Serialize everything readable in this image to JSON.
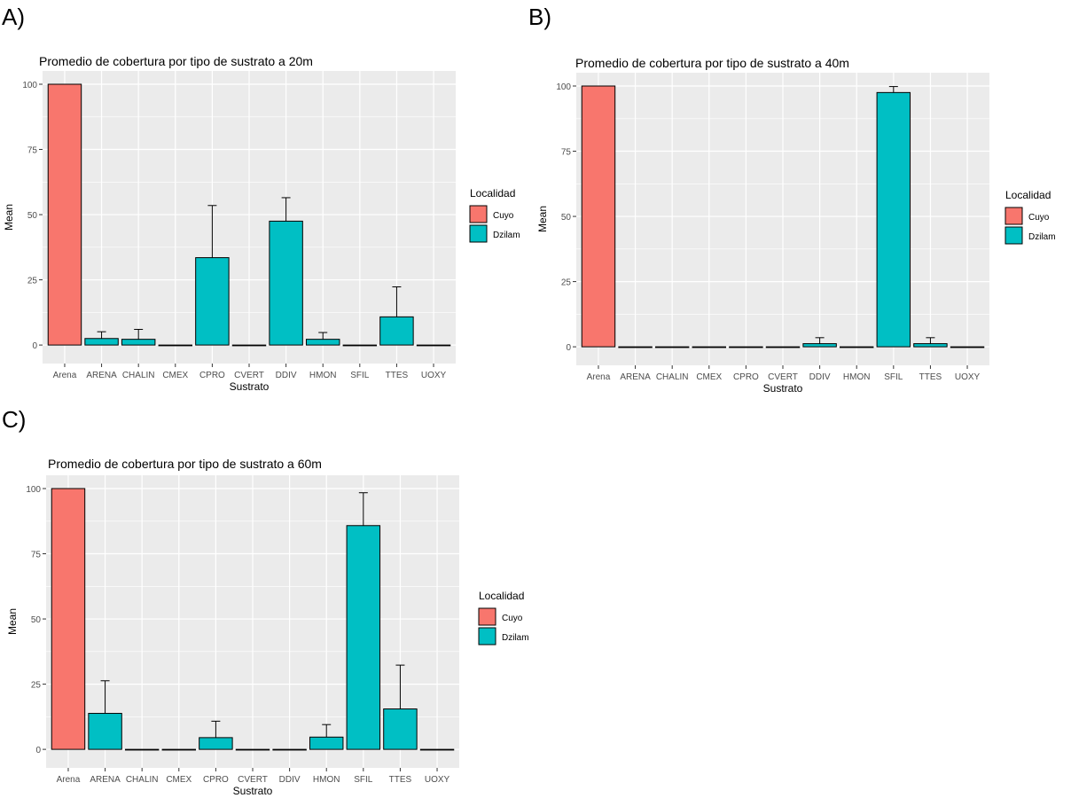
{
  "panels": [
    {
      "letter": "A)"
    },
    {
      "letter": "B)"
    },
    {
      "letter": "C)"
    }
  ],
  "colors": {
    "Cuyo": "#F8766D",
    "Dzilam": "#00BFC4",
    "panel_bg": "#EBEBEB",
    "grid": "#FFFFFF"
  },
  "chart_data": [
    {
      "type": "bar",
      "title": "Promedio de cobertura por tipo de sustrato a 20m",
      "xlabel": "Sustrato",
      "ylabel": "Mean",
      "ylim": [
        -2,
        100
      ],
      "yticks": [
        0,
        25,
        50,
        75,
        100
      ],
      "categories": [
        "Arena",
        "ARENA",
        "CHALIN",
        "CMEX",
        "CPRO",
        "CVERT",
        "DDIV",
        "HMON",
        "SFIL",
        "TTES",
        "UOXY"
      ],
      "series": [
        {
          "name": "Cuyo",
          "values": [
            100,
            null,
            null,
            null,
            null,
            null,
            null,
            null,
            null,
            null,
            null
          ],
          "errors": [
            0,
            null,
            null,
            null,
            null,
            null,
            null,
            null,
            null,
            null,
            null
          ]
        },
        {
          "name": "Dzilam",
          "values": [
            null,
            2.5,
            2.2,
            0,
            33.5,
            0,
            47.5,
            2.2,
            0,
            10.8,
            0
          ],
          "errors": [
            null,
            2.6,
            3.8,
            0,
            20,
            0,
            9,
            2.6,
            0,
            11.5,
            0
          ]
        }
      ],
      "legend": {
        "title": "Localidad",
        "position": "right"
      },
      "grid": true
    },
    {
      "type": "bar",
      "title": "Promedio de cobertura por tipo de sustrato a 40m",
      "xlabel": "Sustrato",
      "ylabel": "Mean",
      "ylim": [
        -2,
        100
      ],
      "yticks": [
        0,
        25,
        50,
        75,
        100
      ],
      "categories": [
        "Arena",
        "ARENA",
        "CHALIN",
        "CMEX",
        "CPRO",
        "CVERT",
        "DDIV",
        "HMON",
        "SFIL",
        "TTES",
        "UOXY"
      ],
      "series": [
        {
          "name": "Cuyo",
          "values": [
            100,
            null,
            null,
            null,
            null,
            null,
            null,
            null,
            null,
            null,
            null
          ],
          "errors": [
            0,
            null,
            null,
            null,
            null,
            null,
            null,
            null,
            null,
            null,
            null
          ]
        },
        {
          "name": "Dzilam",
          "values": [
            null,
            0,
            0,
            0,
            0,
            0,
            1.2,
            0,
            97.5,
            1.2,
            0
          ],
          "errors": [
            null,
            0,
            0,
            0,
            0,
            0,
            2.3,
            0,
            2.3,
            2.3,
            0
          ]
        }
      ],
      "legend": {
        "title": "Localidad",
        "position": "right"
      },
      "grid": true
    },
    {
      "type": "bar",
      "title": "Promedio de cobertura por tipo de sustrato a 60m",
      "xlabel": "Sustrato",
      "ylabel": "Mean",
      "ylim": [
        -2,
        100
      ],
      "yticks": [
        0,
        25,
        50,
        75,
        100
      ],
      "categories": [
        "Arena",
        "ARENA",
        "CHALIN",
        "CMEX",
        "CPRO",
        "CVERT",
        "DDIV",
        "HMON",
        "SFIL",
        "TTES",
        "UOXY"
      ],
      "series": [
        {
          "name": "Cuyo",
          "values": [
            100,
            null,
            null,
            null,
            null,
            null,
            null,
            null,
            null,
            null,
            null
          ],
          "errors": [
            0,
            null,
            null,
            null,
            null,
            null,
            null,
            null,
            null,
            null,
            null
          ]
        },
        {
          "name": "Dzilam",
          "values": [
            null,
            13.8,
            0,
            0,
            4.5,
            0,
            0,
            4.7,
            85.8,
            15.5,
            0
          ],
          "errors": [
            null,
            12.5,
            0,
            0,
            6.3,
            0,
            0,
            4.8,
            12.6,
            16.8,
            0
          ]
        }
      ],
      "legend": {
        "title": "Localidad",
        "position": "right"
      },
      "grid": true
    }
  ]
}
